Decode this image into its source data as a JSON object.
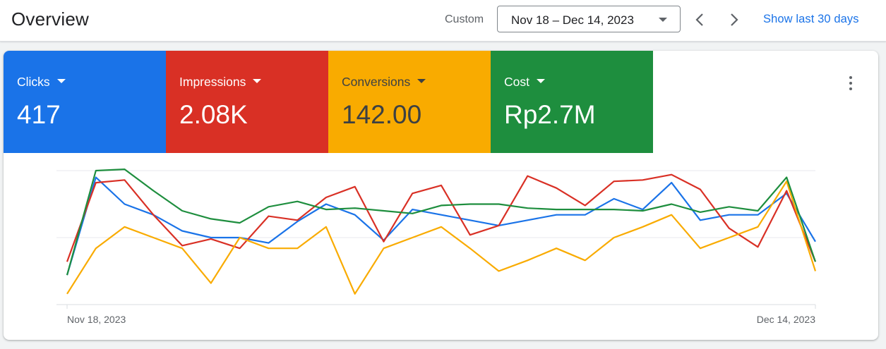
{
  "header": {
    "title": "Overview",
    "range_label": "Custom",
    "date_range": "Nov 18 – Dec 14, 2023",
    "prev_icon": "chevron-left-icon",
    "next_icon": "chevron-right-icon",
    "show_last": "Show last 30 days"
  },
  "metrics": [
    {
      "label": "Clicks",
      "value": "417",
      "color": "#1a73e8",
      "text_color": "#ffffff"
    },
    {
      "label": "Impressions",
      "value": "2.08K",
      "color": "#d93025",
      "text_color": "#ffffff"
    },
    {
      "label": "Conversions",
      "value": "142.00",
      "color": "#f9ab00",
      "text_color": "#3c4043"
    },
    {
      "label": "Cost",
      "value": "Rp2.7M",
      "color": "#1e8e3e",
      "text_color": "#ffffff"
    }
  ],
  "more_icon": "more-vert-icon",
  "chart_data": {
    "type": "line",
    "x_start_label": "Nov 18, 2023",
    "x_end_label": "Dec 14, 2023",
    "ylim": [
      0,
      1
    ],
    "grid": true,
    "series": [
      {
        "color": "#1a73e8",
        "values": [
          0.22,
          0.95,
          0.75,
          0.67,
          0.55,
          0.5,
          0.5,
          0.46,
          0.62,
          0.75,
          0.67,
          0.48,
          0.71,
          0.67,
          0.63,
          0.59,
          0.63,
          0.67,
          0.67,
          0.79,
          0.71,
          0.91,
          0.63,
          0.67,
          0.67,
          0.83,
          0.47
        ]
      },
      {
        "color": "#d93025",
        "values": [
          0.32,
          0.91,
          0.93,
          0.67,
          0.44,
          0.49,
          0.42,
          0.66,
          0.63,
          0.8,
          0.88,
          0.47,
          0.83,
          0.89,
          0.52,
          0.59,
          0.96,
          0.87,
          0.74,
          0.92,
          0.93,
          0.97,
          0.86,
          0.57,
          0.43,
          0.85,
          0.32
        ]
      },
      {
        "color": "#f9ab00",
        "values": [
          0.08,
          0.42,
          0.58,
          0.5,
          0.42,
          0.16,
          0.5,
          0.42,
          0.42,
          0.58,
          0.08,
          0.42,
          0.5,
          0.58,
          0.42,
          0.25,
          0.33,
          0.42,
          0.33,
          0.5,
          0.58,
          0.67,
          0.42,
          0.5,
          0.58,
          0.92,
          0.25
        ]
      },
      {
        "color": "#1e8e3e",
        "values": [
          0.22,
          1.0,
          1.01,
          0.85,
          0.7,
          0.64,
          0.61,
          0.73,
          0.77,
          0.71,
          0.72,
          0.7,
          0.68,
          0.74,
          0.75,
          0.75,
          0.72,
          0.71,
          0.71,
          0.71,
          0.7,
          0.75,
          0.69,
          0.73,
          0.7,
          0.95,
          0.32
        ]
      }
    ]
  }
}
